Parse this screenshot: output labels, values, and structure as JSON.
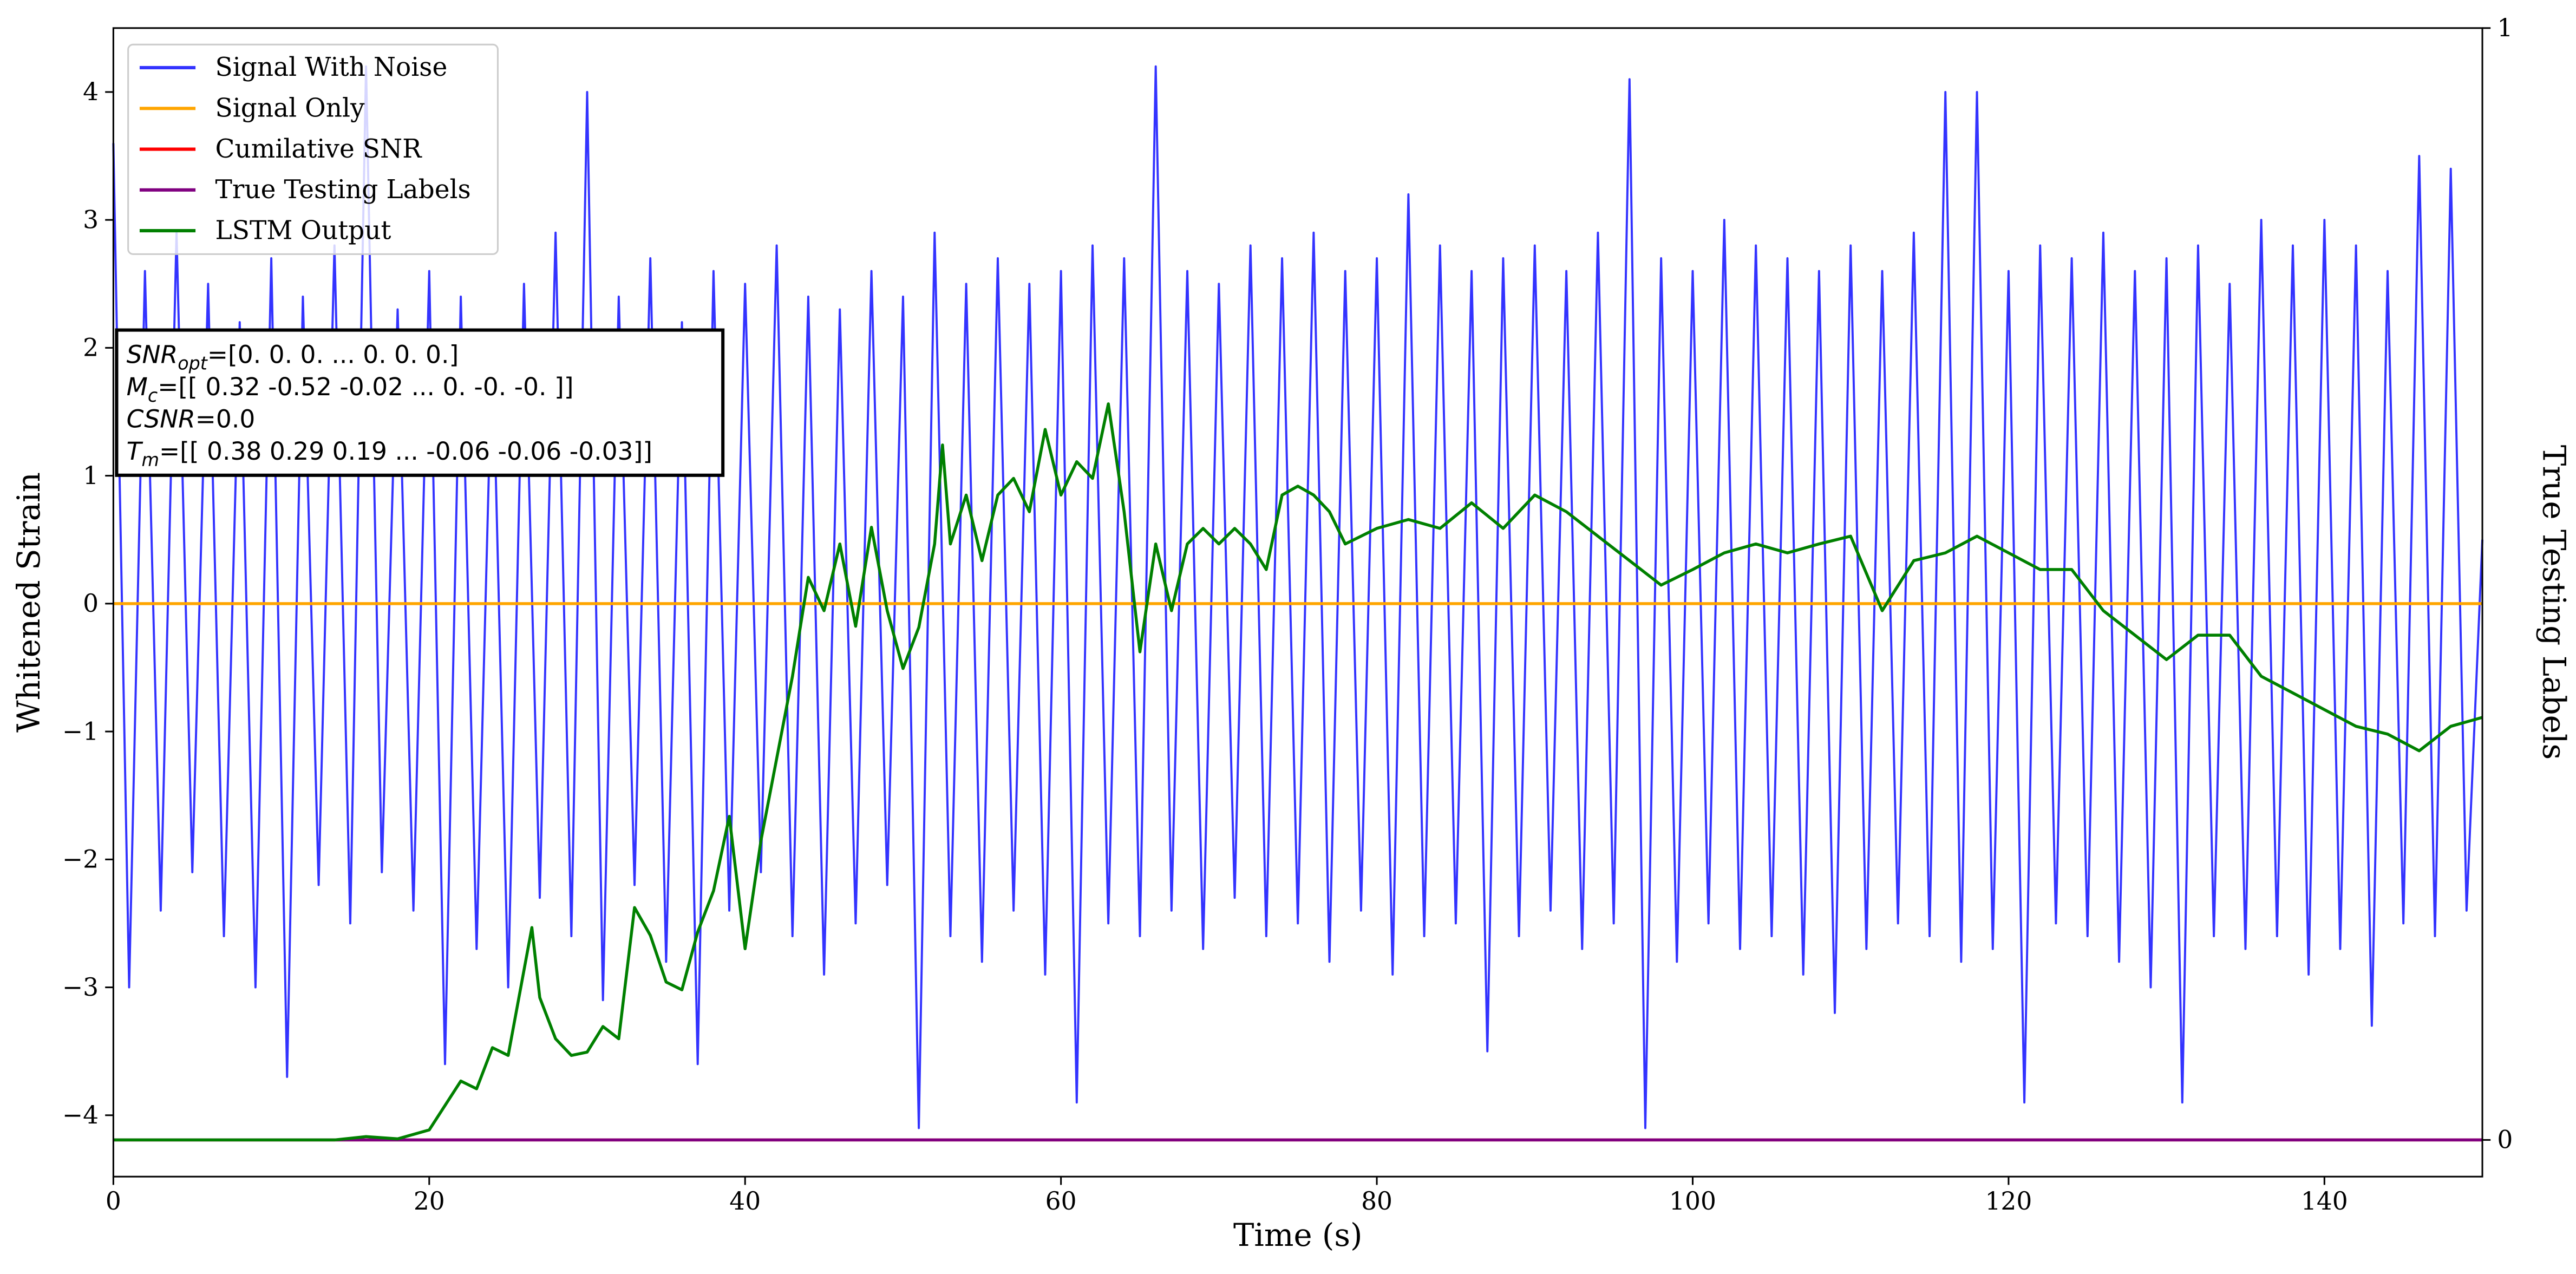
{
  "chart_data": {
    "type": "line",
    "xlabel": "Time (s)",
    "ylabel": "Whitened Strain",
    "y2label": "True Testing Labels",
    "xlim": [
      0,
      150
    ],
    "ylim": [
      -4.48,
      4.5
    ],
    "y2lim": [
      -0.033,
      1
    ],
    "xticks": [
      0,
      20,
      40,
      60,
      80,
      100,
      120,
      140
    ],
    "yticks": [
      {
        "value": -4,
        "label": "−4"
      },
      {
        "value": -3,
        "label": "−3"
      },
      {
        "value": -2,
        "label": "−2"
      },
      {
        "value": -1,
        "label": "−1"
      },
      0,
      1,
      2,
      3,
      4
    ],
    "y2ticks": [
      0,
      1
    ],
    "legend": "upper left",
    "series": [
      {
        "name": "Signal With Noise",
        "color": "#3333ff",
        "x": [
          0,
          1,
          2,
          3,
          4,
          5,
          6,
          7,
          8,
          9,
          10,
          11,
          12,
          13,
          14,
          15,
          16,
          17,
          18,
          19,
          20,
          21,
          22,
          23,
          24,
          25,
          26,
          27,
          28,
          29,
          30,
          31,
          32,
          33,
          34,
          35,
          36,
          37,
          38,
          39,
          40,
          41,
          42,
          43,
          44,
          45,
          46,
          47,
          48,
          49,
          50,
          51,
          52,
          53,
          54,
          55,
          56,
          57,
          58,
          59,
          60,
          61,
          62,
          63,
          64,
          65,
          66,
          67,
          68,
          69,
          70,
          71,
          72,
          73,
          74,
          75,
          76,
          77,
          78,
          79,
          80,
          81,
          82,
          83,
          84,
          85,
          86,
          87,
          88,
          89,
          90,
          91,
          92,
          93,
          94,
          95,
          96,
          97,
          98,
          99,
          100,
          101,
          102,
          103,
          104,
          105,
          106,
          107,
          108,
          109,
          110,
          111,
          112,
          113,
          114,
          115,
          116,
          117,
          118,
          119,
          120,
          121,
          122,
          123,
          124,
          125,
          126,
          127,
          128,
          129,
          130,
          131,
          132,
          133,
          134,
          135,
          136,
          137,
          138,
          139,
          140,
          141,
          142,
          143,
          144,
          145,
          146,
          147,
          148,
          149,
          150
        ],
        "values": [
          3.6,
          -3.0,
          2.6,
          -2.4,
          2.9,
          -2.1,
          2.5,
          -2.6,
          2.2,
          -3.0,
          2.7,
          -3.7,
          2.4,
          -2.2,
          2.8,
          -2.5,
          4.2,
          -2.1,
          2.3,
          -2.4,
          2.6,
          -3.6,
          2.4,
          -2.7,
          2.1,
          -3.0,
          2.5,
          -2.3,
          2.9,
          -2.6,
          4.0,
          -3.1,
          2.4,
          -2.2,
          2.7,
          -2.8,
          2.2,
          -3.6,
          2.6,
          -2.4,
          2.5,
          -2.1,
          2.8,
          -2.6,
          2.4,
          -2.9,
          2.3,
          -2.5,
          2.6,
          -2.2,
          2.4,
          -4.1,
          2.9,
          -2.6,
          2.5,
          -2.8,
          2.7,
          -2.4,
          2.5,
          -2.9,
          2.6,
          -3.9,
          2.8,
          -2.5,
          2.7,
          -2.6,
          4.2,
          -2.4,
          2.6,
          -2.7,
          2.5,
          -2.3,
          2.8,
          -2.6,
          2.7,
          -2.5,
          2.9,
          -2.8,
          2.6,
          -2.4,
          2.7,
          -2.9,
          3.2,
          -2.6,
          2.8,
          -2.5,
          2.6,
          -3.5,
          2.7,
          -2.6,
          2.8,
          -2.4,
          2.6,
          -2.7,
          2.9,
          -2.5,
          4.1,
          -4.1,
          2.7,
          -2.8,
          2.6,
          -2.5,
          3.0,
          -2.7,
          2.8,
          -2.6,
          2.7,
          -2.9,
          2.6,
          -3.2,
          2.8,
          -2.7,
          2.6,
          -2.5,
          2.9,
          -2.6,
          4.0,
          -2.8,
          4.0,
          -2.7,
          2.6,
          -3.9,
          2.8,
          -2.5,
          2.7,
          -2.6,
          2.9,
          -2.8,
          2.6,
          -3.0,
          2.7,
          -3.9,
          2.8,
          -2.6,
          2.5,
          -2.7,
          3.0,
          -2.6,
          2.8,
          -2.9,
          3.0,
          -2.7,
          2.8,
          -3.3,
          2.6,
          -2.5,
          3.5,
          -2.6,
          3.4,
          -2.4,
          0.5
        ]
      },
      {
        "name": "Signal Only",
        "color": "#ffa500",
        "x": [
          0,
          150
        ],
        "values": [
          0,
          0
        ]
      },
      {
        "name": "Cumilative SNR",
        "color": "#ff0000",
        "axis": "y2",
        "x": [
          0,
          150
        ],
        "values": [
          0,
          0
        ]
      },
      {
        "name": "True Testing Labels",
        "color": "#800080",
        "axis": "y2",
        "x": [
          0,
          150
        ],
        "values": [
          0,
          0
        ]
      },
      {
        "name": "LSTM Output",
        "color": "#008000",
        "axis": "y2",
        "x": [
          0,
          14,
          16,
          18,
          20,
          21,
          22,
          23,
          24,
          25,
          26.5,
          27,
          28,
          29,
          30,
          31,
          32,
          33,
          34,
          35,
          36,
          37,
          38,
          39,
          40,
          41,
          42,
          43,
          44,
          45,
          46,
          47,
          48,
          49,
          50,
          51,
          52,
          52.5,
          53,
          54,
          55,
          56,
          57,
          58,
          59,
          60,
          61,
          62,
          63,
          64,
          65,
          66,
          67,
          68,
          69,
          70,
          71,
          72,
          73,
          74,
          75,
          76,
          77,
          78,
          80,
          82,
          84,
          86,
          88,
          90,
          92,
          94,
          96,
          98,
          100,
          102,
          104,
          106,
          108,
          110,
          112,
          114,
          116,
          118,
          120,
          122,
          124,
          126,
          128,
          130,
          132,
          134,
          136,
          138,
          140,
          142,
          144,
          146,
          148,
          150
        ],
        "values": [
          0,
          0,
          0.003,
          0.001,
          0.009,
          0.031,
          0.053,
          0.046,
          0.083,
          0.076,
          0.191,
          0.128,
          0.091,
          0.076,
          0.079,
          0.102,
          0.091,
          0.209,
          0.184,
          0.142,
          0.135,
          0.187,
          0.224,
          0.291,
          0.172,
          0.269,
          0.343,
          0.417,
          0.506,
          0.476,
          0.536,
          0.462,
          0.551,
          0.476,
          0.424,
          0.461,
          0.536,
          0.625,
          0.536,
          0.58,
          0.521,
          0.58,
          0.595,
          0.565,
          0.639,
          0.58,
          0.61,
          0.595,
          0.662,
          0.565,
          0.439,
          0.536,
          0.476,
          0.536,
          0.55,
          0.536,
          0.55,
          0.536,
          0.513,
          0.58,
          0.588,
          0.58,
          0.565,
          0.536,
          0.55,
          0.558,
          0.55,
          0.573,
          0.55,
          0.58,
          0.565,
          0.543,
          0.521,
          0.499,
          0.513,
          0.528,
          0.536,
          0.528,
          0.536,
          0.543,
          0.476,
          0.521,
          0.528,
          0.543,
          0.528,
          0.513,
          0.513,
          0.476,
          0.454,
          0.432,
          0.454,
          0.454,
          0.417,
          0.402,
          0.387,
          0.372,
          0.365,
          0.35,
          0.372,
          0.38
        ]
      }
    ],
    "annotation": [
      {
        "symbol": "SNR",
        "subscript": "opt",
        "text": "=[0. 0. 0. ... 0. 0. 0.]"
      },
      {
        "symbol": "M",
        "subscript": "c",
        "text": "=[[ 0.32 -0.52 -0.02 ...  0.   -0.   -0.  ]]"
      },
      {
        "symbol": "CSNR",
        "text": "=0.0"
      },
      {
        "symbol": "T",
        "subscript": "m",
        "text": "=[[ 0.38  0.29  0.19 ... -0.06 -0.06 -0.03]]"
      }
    ]
  }
}
